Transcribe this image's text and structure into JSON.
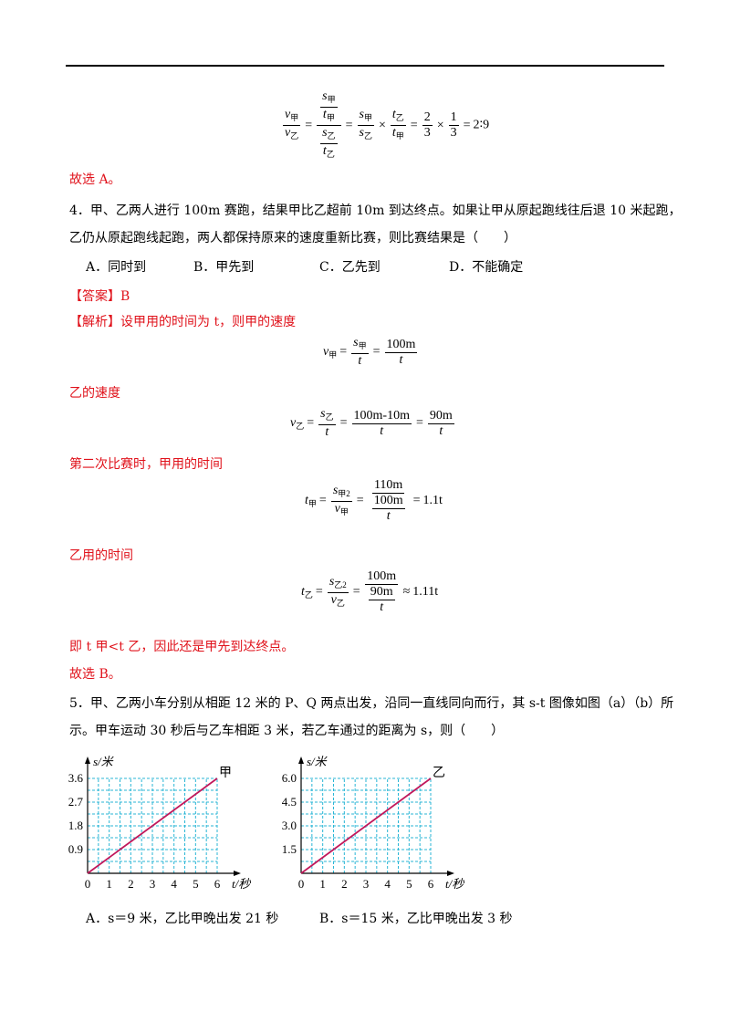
{
  "q3": {
    "formula": {
      "v_jia": "v",
      "v_yi": "v",
      "sub_jia": "甲",
      "sub_yi": "乙",
      "s": "s",
      "t": "t",
      "two_three_num": "2",
      "two_three_den": "3",
      "one_three_num": "1",
      "one_three_den": "3",
      "result": "2∶9"
    },
    "conclusion": "故选 A。"
  },
  "q4": {
    "stem_line1": "4．甲、乙两人进行 100m 赛跑，结果甲比乙超前 10m 到达终点。如果让甲从原起跑线往后退 10 米起跑，",
    "stem_line2": "乙仍从原起跑线起跑，两人都保持原来的速度重新比赛，则比赛结果是（　　）",
    "options": [
      "A．同时到",
      "B．甲先到",
      "C．乙先到",
      "D．不能确定"
    ],
    "answer": "【答案】B",
    "analysis_label": "【解析】",
    "analysis_text": "设甲用的时间为 t，则甲的速度",
    "f1": {
      "lhs": "v",
      "lhs_sub": "甲",
      "s_sub": "甲",
      "num2": "100m",
      "den": "t"
    },
    "yi_speed_label": "乙的速度",
    "f2": {
      "lhs": "v",
      "lhs_sub": "乙",
      "s_sub": "乙",
      "num2": "100m-10m",
      "num3": "90m",
      "den": "t"
    },
    "second_race_label": "第二次比赛时，甲用的时间",
    "f3": {
      "lhs": "t",
      "lhs_sub": "甲",
      "num1_sub": "甲2",
      "den1_sub": "甲",
      "num2": "110m",
      "inner_num": "100m",
      "inner_den": "t",
      "result": "1.1t"
    },
    "yi_time_label": "乙用的时间",
    "f4": {
      "lhs": "t",
      "lhs_sub": "乙",
      "num1_sub": "乙2",
      "den1_sub": "乙",
      "num2": "100m",
      "inner_num": "90m",
      "inner_den": "t",
      "result": "1.11t"
    },
    "compare": "即 t 甲<t 乙，因此还是甲先到达终点。",
    "conclusion": "故选 B。"
  },
  "q5": {
    "stem_line1": "5．甲、乙两小车分别从相距 12 米的 P、Q 两点出发，沿同一直线同向而行，其 s-t 图像如图（a）（b）所",
    "stem_line2": "示。甲车运动 30 秒后与乙车相距 3 米，若乙车通过的距离为 s，则（　　）",
    "options": [
      "A．s＝9 米，乙比甲晚出发 21 秒",
      "B．s＝15 米，乙比甲晚出发 3 秒"
    ]
  },
  "chart_data": [
    {
      "type": "line",
      "series": [
        {
          "name": "甲",
          "x": [
            0,
            6
          ],
          "y": [
            0,
            3.6
          ]
        }
      ],
      "xlabel": "t/秒",
      "ylabel": "s/米",
      "xticks": [
        "0",
        "1",
        "2",
        "3",
        "4",
        "5",
        "6"
      ],
      "yticks": [
        "0.9",
        "1.8",
        "2.7",
        "3.6"
      ],
      "xlim": [
        0,
        6
      ],
      "ylim": [
        0,
        3.6
      ],
      "grid": true,
      "colors": {
        "line": "#c2185b",
        "grid": "#29b6d6"
      }
    },
    {
      "type": "line",
      "series": [
        {
          "name": "乙",
          "x": [
            0,
            6
          ],
          "y": [
            0,
            6.0
          ]
        }
      ],
      "xlabel": "t/秒",
      "ylabel": "s/米",
      "xticks": [
        "0",
        "1",
        "2",
        "3",
        "4",
        "5",
        "6"
      ],
      "yticks": [
        "1.5",
        "3.0",
        "4.5",
        "6.0"
      ],
      "xlim": [
        0,
        6
      ],
      "ylim": [
        0,
        6.0
      ],
      "grid": true,
      "colors": {
        "line": "#c2185b",
        "grid": "#29b6d6"
      }
    }
  ]
}
